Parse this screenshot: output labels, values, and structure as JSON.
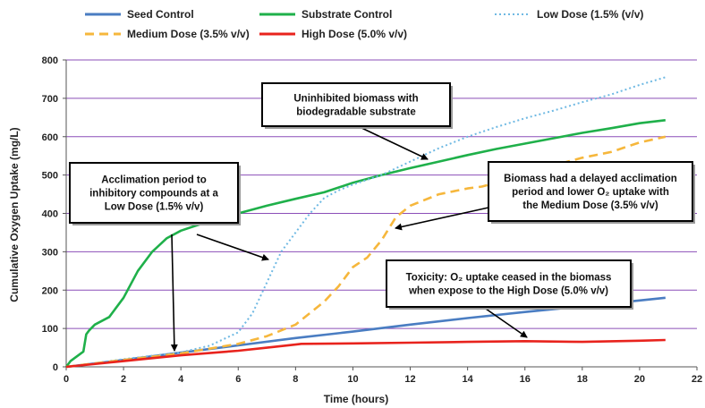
{
  "chart_data": {
    "type": "line",
    "xlabel": "Time (hours)",
    "ylabel": "Cumulative Oxygen Uptake (mg/L)",
    "xlim": [
      0,
      22
    ],
    "ylim": [
      0,
      800
    ],
    "xticks": [
      0,
      2,
      4,
      6,
      8,
      10,
      12,
      14,
      16,
      18,
      20,
      22
    ],
    "yticks": [
      0,
      100,
      200,
      300,
      400,
      500,
      600,
      700,
      800
    ],
    "grid": "horizontal",
    "legend": "top",
    "series": [
      {
        "name": "Seed Control",
        "color": "#4a7dc2",
        "style": "solid",
        "x": [
          0,
          2,
          4,
          6,
          8,
          10,
          12,
          14,
          16,
          18,
          20,
          20.9
        ],
        "y": [
          0,
          18,
          37,
          56,
          75,
          92,
          110,
          127,
          143,
          158,
          173,
          180
        ]
      },
      {
        "name": "Substrate Control",
        "color": "#1fb04a",
        "style": "solid",
        "x": [
          0,
          0.15,
          0.6,
          0.7,
          0.8,
          1.0,
          1.5,
          2.0,
          2.5,
          3.0,
          3.5,
          4.0,
          5.0,
          6.0,
          7.0,
          8.0,
          9.0,
          10.0,
          11.0,
          12.0,
          13.0,
          14.0,
          15.0,
          16.0,
          17.0,
          18.0,
          19.0,
          20.0,
          20.9
        ],
        "y": [
          0,
          15,
          40,
          85,
          95,
          110,
          130,
          180,
          250,
          300,
          335,
          355,
          380,
          400,
          420,
          438,
          455,
          480,
          500,
          518,
          535,
          552,
          568,
          582,
          596,
          610,
          622,
          635,
          643
        ]
      },
      {
        "name": "Low Dose (1.5% (v/v)",
        "color": "#6fb9e3",
        "style": "dotted",
        "x": [
          0,
          2,
          4,
          5,
          6,
          6.5,
          7.0,
          7.5,
          8.0,
          8.5,
          9.0,
          9.5,
          10.0,
          11.0,
          12.0,
          13.0,
          14.0,
          15.0,
          16.0,
          17.0,
          18.0,
          19.0,
          20.0,
          20.9
        ],
        "y": [
          0,
          20,
          38,
          55,
          90,
          140,
          220,
          300,
          350,
          400,
          440,
          460,
          475,
          500,
          535,
          570,
          600,
          625,
          648,
          668,
          690,
          710,
          735,
          755
        ]
      },
      {
        "name": "Medium Dose (3.5% v/v)",
        "color": "#f6b73c",
        "style": "dashed",
        "x": [
          0,
          2,
          4,
          6,
          7,
          8,
          9,
          9.5,
          10.0,
          10.5,
          11.0,
          11.5,
          12.0,
          13.0,
          14.0,
          14.5,
          15.0,
          16.0,
          17.0,
          18.0,
          19.0,
          20.0,
          20.9
        ],
        "y": [
          0,
          18,
          35,
          60,
          80,
          110,
          170,
          210,
          260,
          285,
          330,
          390,
          420,
          450,
          465,
          470,
          480,
          505,
          525,
          545,
          560,
          585,
          600
        ]
      },
      {
        "name": "High Dose (5.0% v/v)",
        "color": "#e8231d",
        "style": "solid",
        "x": [
          0,
          2,
          4,
          6,
          7,
          8,
          8.2,
          10,
          12,
          14,
          16,
          18,
          20,
          20.9
        ],
        "y": [
          0,
          15,
          30,
          42,
          50,
          58,
          60,
          61,
          63,
          65,
          67,
          65,
          68,
          70
        ]
      }
    ],
    "annotations": [
      {
        "lines": [
          "Uninhibited biomass with",
          "biodegradable substrate"
        ]
      },
      {
        "lines": [
          "Acclimation period to",
          "inhibitory compounds at a",
          "Low Dose (1.5% v/v)"
        ]
      },
      {
        "lines": [
          "Biomass had a delayed acclimation",
          "period and lower O₂ uptake with",
          "the Medium Dose (3.5% v/v)"
        ]
      },
      {
        "lines": [
          "Toxicity: O₂ uptake ceased in the biomass",
          "when expose to the High Dose (5.0% v/v)"
        ]
      }
    ]
  }
}
